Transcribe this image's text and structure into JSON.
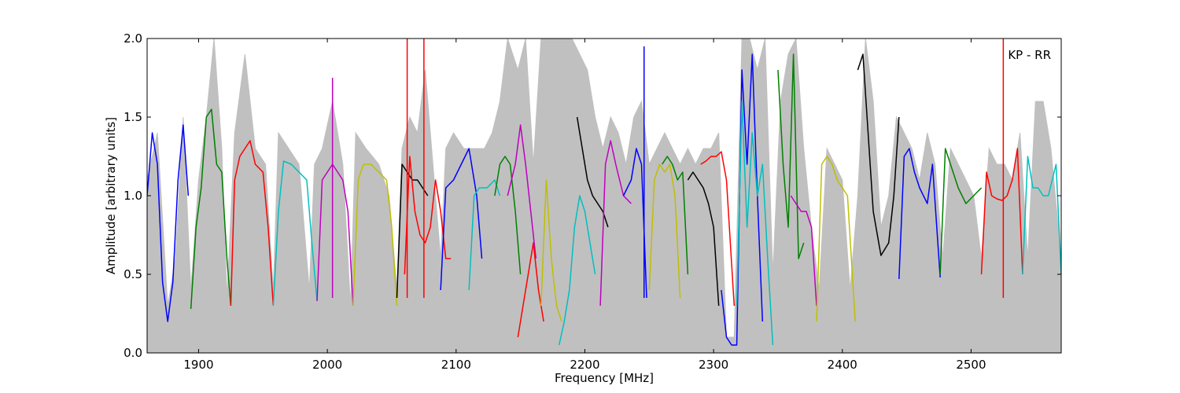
{
  "chart_data": {
    "type": "line",
    "title": "",
    "xlabel": "Frequency [MHz]",
    "ylabel": "Amplitude [arbitrary units]",
    "xlim": [
      1860,
      2570
    ],
    "ylim": [
      0.0,
      2.0
    ],
    "xticks": [
      1900,
      2000,
      2100,
      2200,
      2300,
      2400,
      2500
    ],
    "xtick_labels": [
      "1900",
      "2000",
      "2100",
      "2200",
      "2300",
      "2400",
      "2500"
    ],
    "yticks": [
      0.0,
      0.5,
      1.0,
      1.5,
      2.0
    ],
    "ytick_labels": [
      "0.0",
      "0.5",
      "1.0",
      "1.5",
      "2.0"
    ],
    "annotation": "KP - RR",
    "grid": false,
    "envelope": {
      "color": "#c0c0c0",
      "x": [
        1860,
        1868,
        1876,
        1882,
        1888,
        1894,
        1900,
        1906,
        1912,
        1918,
        1922,
        1928,
        1936,
        1944,
        1952,
        1958,
        1962,
        1970,
        1978,
        1986,
        1990,
        1996,
        2004,
        2012,
        2018,
        2022,
        2030,
        2040,
        2048,
        2054,
        2058,
        2064,
        2070,
        2076,
        2082,
        2088,
        2092,
        2098,
        2106,
        2114,
        2122,
        2128,
        2134,
        2140,
        2148,
        2154,
        2160,
        2166,
        2172,
        2178,
        2184,
        2190,
        2196,
        2202,
        2208,
        2214,
        2220,
        2226,
        2232,
        2238,
        2244,
        2250,
        2256,
        2262,
        2268,
        2274,
        2280,
        2286,
        2292,
        2298,
        2304,
        2310,
        2316,
        2322,
        2328,
        2334,
        2340,
        2346,
        2352,
        2358,
        2364,
        2370,
        2376,
        2382,
        2388,
        2394,
        2400,
        2406,
        2412,
        2418,
        2424,
        2430,
        2436,
        2442,
        2448,
        2454,
        2460,
        2466,
        2472,
        2478,
        2484,
        2490,
        2496,
        2502,
        2508,
        2514,
        2520,
        2526,
        2532,
        2538,
        2544,
        2550,
        2556,
        2562,
        2570
      ],
      "y": [
        1.1,
        1.4,
        0.3,
        0.6,
        1.5,
        0.4,
        1.1,
        1.5,
        2.0,
        1.3,
        0.35,
        1.4,
        1.9,
        1.3,
        1.2,
        0.4,
        1.4,
        1.3,
        1.2,
        0.4,
        1.2,
        1.3,
        1.6,
        1.2,
        0.3,
        1.4,
        1.3,
        1.2,
        1.0,
        0.4,
        1.3,
        1.5,
        1.4,
        1.8,
        1.2,
        0.6,
        1.3,
        1.4,
        1.3,
        1.3,
        1.3,
        1.4,
        1.6,
        2.0,
        1.8,
        2.0,
        1.2,
        2.0,
        2.0,
        2.0,
        2.0,
        2.0,
        1.9,
        1.8,
        1.5,
        1.3,
        1.5,
        1.4,
        1.2,
        1.5,
        1.6,
        1.2,
        1.3,
        1.4,
        1.3,
        1.2,
        1.3,
        1.2,
        1.3,
        1.3,
        1.4,
        0.1,
        0.1,
        2.0,
        2.0,
        1.8,
        2.0,
        0.5,
        1.6,
        1.9,
        2.0,
        1.3,
        0.8,
        0.4,
        1.3,
        1.2,
        1.1,
        0.4,
        1.0,
        2.0,
        1.6,
        0.8,
        1.0,
        1.5,
        1.4,
        1.3,
        1.1,
        1.4,
        1.2,
        0.6,
        1.3,
        1.2,
        1.1,
        1.0,
        0.6,
        1.3,
        1.2,
        1.2,
        1.1,
        1.4,
        0.6,
        1.6,
        1.6,
        1.3,
        0.6
      ]
    },
    "series": [
      {
        "color": "#0000ff",
        "x": [
          1860,
          1864,
          1868,
          1872,
          1876,
          1880,
          1884,
          1888,
          1892
        ],
        "y": [
          1.0,
          1.4,
          1.2,
          0.45,
          0.2,
          0.45,
          1.1,
          1.45,
          1.0
        ]
      },
      {
        "color": "#008000",
        "x": [
          1894,
          1898,
          1902,
          1906,
          1910,
          1914,
          1918,
          1922,
          1925
        ],
        "y": [
          0.28,
          0.8,
          1.05,
          1.5,
          1.55,
          1.2,
          1.15,
          0.6,
          0.3
        ]
      },
      {
        "color": "#ff0000",
        "x": [
          1925,
          1928,
          1932,
          1936,
          1940,
          1944,
          1950,
          1954,
          1958
        ],
        "y": [
          0.3,
          1.1,
          1.25,
          1.3,
          1.35,
          1.2,
          1.15,
          0.8,
          0.3
        ]
      },
      {
        "color": "#00bfbf",
        "x": [
          1958,
          1962,
          1966,
          1972,
          1978,
          1984,
          1988,
          1992
        ],
        "y": [
          0.3,
          0.9,
          1.22,
          1.2,
          1.15,
          1.1,
          0.7,
          0.33
        ]
      },
      {
        "color": "#bf00bf",
        "x": [
          1992,
          1996,
          2000,
          2004,
          2008,
          2012,
          2016,
          2020
        ],
        "y": [
          0.33,
          1.1,
          1.15,
          1.2,
          1.15,
          1.1,
          0.9,
          0.3
        ]
      },
      {
        "color": "#bfbf00",
        "x": [
          2020,
          2024,
          2028,
          2034,
          2040,
          2046,
          2050,
          2054
        ],
        "y": [
          0.3,
          1.1,
          1.2,
          1.2,
          1.15,
          1.1,
          0.8,
          0.3
        ]
      },
      {
        "color": "#000000",
        "x": [
          2054,
          2058,
          2062,
          2066,
          2070,
          2074,
          2078
        ],
        "y": [
          0.35,
          1.2,
          1.15,
          1.1,
          1.1,
          1.05,
          1.0
        ]
      },
      {
        "color": "#ff0000",
        "x": [
          2060,
          2064,
          2068,
          2072,
          2076,
          2080,
          2084,
          2088,
          2092,
          2096
        ],
        "y": [
          0.5,
          1.25,
          0.9,
          0.75,
          0.7,
          0.8,
          1.1,
          0.9,
          0.6,
          0.6
        ]
      },
      {
        "color": "#0000ff",
        "x": [
          2088,
          2092,
          2098,
          2104,
          2110,
          2116,
          2120
        ],
        "y": [
          0.4,
          1.05,
          1.1,
          1.2,
          1.3,
          1.0,
          0.6
        ]
      },
      {
        "color": "#00bfbf",
        "x": [
          2110,
          2114,
          2118,
          2124,
          2130,
          2134
        ],
        "y": [
          0.4,
          1.0,
          1.05,
          1.05,
          1.1,
          1.0
        ]
      },
      {
        "color": "#008000",
        "x": [
          2130,
          2134,
          2138,
          2142,
          2146,
          2150
        ],
        "y": [
          1.0,
          1.2,
          1.25,
          1.2,
          0.9,
          0.5
        ]
      },
      {
        "color": "#bf00bf",
        "x": [
          2140,
          2146,
          2150,
          2154,
          2158,
          2162
        ],
        "y": [
          1.0,
          1.2,
          1.45,
          1.2,
          0.9,
          0.6
        ]
      },
      {
        "color": "#ff0000",
        "x": [
          2148,
          2152,
          2156,
          2160,
          2164,
          2168
        ],
        "y": [
          0.1,
          0.3,
          0.5,
          0.7,
          0.4,
          0.2
        ]
      },
      {
        "color": "#bfbf00",
        "x": [
          2166,
          2170,
          2174,
          2178,
          2182
        ],
        "y": [
          0.3,
          1.1,
          0.6,
          0.3,
          0.2
        ]
      },
      {
        "color": "#00bfbf",
        "x": [
          2180,
          2184,
          2188,
          2192,
          2196,
          2200,
          2204,
          2208
        ],
        "y": [
          0.05,
          0.2,
          0.4,
          0.8,
          1.0,
          0.9,
          0.7,
          0.5
        ]
      },
      {
        "color": "#000000",
        "x": [
          2194,
          2198,
          2202,
          2206,
          2210,
          2214,
          2218
        ],
        "y": [
          1.5,
          1.3,
          1.1,
          1.0,
          0.95,
          0.9,
          0.8
        ]
      },
      {
        "color": "#bf00bf",
        "x": [
          2212,
          2216,
          2220,
          2224,
          2230,
          2236
        ],
        "y": [
          0.3,
          1.2,
          1.35,
          1.2,
          1.0,
          0.95
        ]
      },
      {
        "color": "#0000ff",
        "x": [
          2230,
          2236,
          2240,
          2244,
          2248
        ],
        "y": [
          1.0,
          1.1,
          1.3,
          1.2,
          0.35
        ]
      },
      {
        "color": "#bfbf00",
        "x": [
          2250,
          2254,
          2258,
          2262,
          2266,
          2270,
          2274
        ],
        "y": [
          0.4,
          1.1,
          1.2,
          1.15,
          1.2,
          1.0,
          0.35
        ]
      },
      {
        "color": "#008000",
        "x": [
          2260,
          2264,
          2268,
          2272,
          2276,
          2280
        ],
        "y": [
          1.2,
          1.25,
          1.2,
          1.1,
          1.15,
          0.5
        ]
      },
      {
        "color": "#000000",
        "x": [
          2280,
          2284,
          2288,
          2292,
          2296,
          2300,
          2304
        ],
        "y": [
          1.1,
          1.15,
          1.1,
          1.05,
          0.95,
          0.8,
          0.3
        ]
      },
      {
        "color": "#ff0000",
        "x": [
          2290,
          2294,
          2298,
          2302,
          2306,
          2310,
          2316
        ],
        "y": [
          1.2,
          1.22,
          1.25,
          1.25,
          1.28,
          1.1,
          0.3
        ]
      },
      {
        "color": "#0000ff",
        "x": [
          2306,
          2310,
          2314,
          2318,
          2322,
          2326,
          2330,
          2334,
          2338
        ],
        "y": [
          0.4,
          0.1,
          0.05,
          0.05,
          1.8,
          1.2,
          1.9,
          1.0,
          0.2
        ]
      },
      {
        "color": "#00bfbf",
        "x": [
          2318,
          2322,
          2326,
          2330,
          2334,
          2338,
          2342,
          2346
        ],
        "y": [
          0.3,
          1.6,
          0.8,
          1.4,
          1.0,
          1.2,
          0.6,
          0.05
        ]
      },
      {
        "color": "#008000",
        "x": [
          2350,
          2354,
          2358,
          2362,
          2366,
          2370
        ],
        "y": [
          1.8,
          1.2,
          0.8,
          1.9,
          0.6,
          0.7
        ]
      },
      {
        "color": "#bf00bf",
        "x": [
          2360,
          2364,
          2368,
          2372,
          2376,
          2380
        ],
        "y": [
          1.0,
          0.95,
          0.9,
          0.9,
          0.8,
          0.3
        ]
      },
      {
        "color": "#bfbf00",
        "x": [
          2380,
          2384,
          2388,
          2392,
          2396,
          2400,
          2404,
          2410
        ],
        "y": [
          0.2,
          1.2,
          1.25,
          1.2,
          1.1,
          1.05,
          1.0,
          0.2
        ]
      },
      {
        "color": "#000000",
        "x": [
          2412,
          2416,
          2420,
          2424,
          2430,
          2436,
          2440,
          2444
        ],
        "y": [
          1.8,
          1.9,
          1.4,
          0.9,
          0.62,
          0.7,
          1.0,
          1.5
        ]
      },
      {
        "color": "#0000ff",
        "x": [
          2444,
          2448,
          2452,
          2456,
          2460,
          2466,
          2470,
          2476
        ],
        "y": [
          0.47,
          1.25,
          1.3,
          1.15,
          1.05,
          0.95,
          1.2,
          0.48
        ]
      },
      {
        "color": "#008000",
        "x": [
          2476,
          2480,
          2484,
          2490,
          2496,
          2502,
          2508
        ],
        "y": [
          0.5,
          1.3,
          1.2,
          1.05,
          0.95,
          1.0,
          1.05
        ]
      },
      {
        "color": "#ff0000",
        "x": [
          2508,
          2512,
          2516,
          2520,
          2524,
          2528,
          2532,
          2536,
          2540
        ],
        "y": [
          0.5,
          1.15,
          1.0,
          0.98,
          0.97,
          1.0,
          1.1,
          1.3,
          0.5
        ]
      },
      {
        "color": "#00bfbf",
        "x": [
          2540,
          2544,
          2548,
          2552,
          2556,
          2560,
          2566,
          2570
        ],
        "y": [
          0.5,
          1.25,
          1.05,
          1.05,
          1.0,
          1.0,
          1.2,
          0.5
        ]
      }
    ],
    "spikes": [
      {
        "color": "#ff0000",
        "x": 2062,
        "y": 2.0
      },
      {
        "color": "#ff0000",
        "x": 2075,
        "y": 2.0
      },
      {
        "color": "#ff0000",
        "x": 2525,
        "y": 2.0
      },
      {
        "color": "#bf00bf",
        "x": 2004,
        "y": 1.75
      },
      {
        "color": "#0000ff",
        "x": 2246,
        "y": 1.95
      }
    ]
  }
}
